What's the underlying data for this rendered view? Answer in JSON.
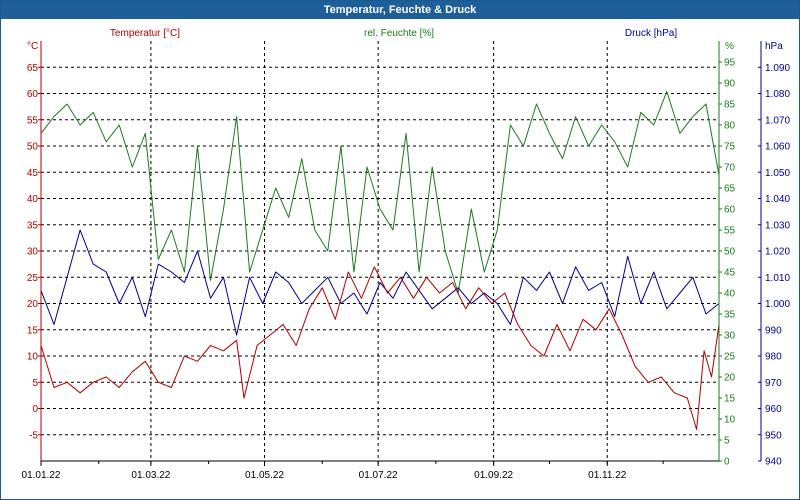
{
  "window": {
    "title": "Temperatur, Feuchte & Druck"
  },
  "colors": {
    "temperature": "#b00000",
    "humidity": "#1e7a1e",
    "pressure": "#00008b",
    "grid": "#000000",
    "title_bar": "#1f5f99"
  },
  "chart_data": {
    "type": "line",
    "title": "Temperatur, Feuchte & Druck",
    "grid": true,
    "x": {
      "type": "date",
      "range": [
        "2022-01-01",
        "2022-12-31"
      ],
      "tick_labels": [
        "01.01.22",
        "01.03.22",
        "01.05.22",
        "01.07.22",
        "01.09.22",
        "01.11.22"
      ],
      "tick_dates": [
        "2022-01-01",
        "2022-03-01",
        "2022-05-01",
        "2022-07-01",
        "2022-09-01",
        "2022-11-01"
      ],
      "minor_ticks": "monthly"
    },
    "axes": {
      "temperature": {
        "label": "Temperatur [°C]",
        "unit": "°C",
        "side": "left",
        "range": [
          -10,
          70
        ],
        "ticks": [
          -5,
          0,
          5,
          10,
          15,
          20,
          25,
          30,
          35,
          40,
          45,
          50,
          55,
          60,
          65
        ]
      },
      "humidity": {
        "label": "rel. Feuchte [%]",
        "unit": "%",
        "side": "right",
        "range": [
          0,
          100
        ],
        "ticks": [
          0,
          5,
          10,
          15,
          20,
          25,
          30,
          35,
          40,
          45,
          50,
          55,
          60,
          65,
          70,
          75,
          80,
          85,
          90,
          95
        ]
      },
      "pressure": {
        "label": "Druck [hPa]",
        "unit": "hPa",
        "side": "far-right",
        "range": [
          940,
          1100
        ],
        "ticks": [
          "940",
          "950",
          "960",
          "970",
          "980",
          "990",
          "1.000",
          "1.010",
          "1.020",
          "1.030",
          "1.040",
          "1.050",
          "1.060",
          "1.070",
          "1.080",
          "1.090"
        ]
      }
    },
    "series": [
      {
        "name": "Temperatur [°C]",
        "axis": "temperature",
        "points": [
          [
            "2022-01-01",
            12
          ],
          [
            "2022-01-08",
            4
          ],
          [
            "2022-01-15",
            5
          ],
          [
            "2022-01-22",
            3
          ],
          [
            "2022-01-29",
            5
          ],
          [
            "2022-02-05",
            6
          ],
          [
            "2022-02-12",
            4
          ],
          [
            "2022-02-19",
            7
          ],
          [
            "2022-02-26",
            9
          ],
          [
            "2022-03-05",
            5
          ],
          [
            "2022-03-12",
            4
          ],
          [
            "2022-03-19",
            10
          ],
          [
            "2022-03-26",
            9
          ],
          [
            "2022-04-02",
            12
          ],
          [
            "2022-04-09",
            11
          ],
          [
            "2022-04-16",
            13
          ],
          [
            "2022-04-20",
            2
          ],
          [
            "2022-04-27",
            12
          ],
          [
            "2022-05-04",
            14
          ],
          [
            "2022-05-11",
            16
          ],
          [
            "2022-05-18",
            12
          ],
          [
            "2022-05-25",
            19
          ],
          [
            "2022-06-01",
            23
          ],
          [
            "2022-06-08",
            17
          ],
          [
            "2022-06-15",
            26
          ],
          [
            "2022-06-22",
            21
          ],
          [
            "2022-06-29",
            27
          ],
          [
            "2022-07-06",
            22
          ],
          [
            "2022-07-13",
            25
          ],
          [
            "2022-07-20",
            21
          ],
          [
            "2022-07-27",
            25
          ],
          [
            "2022-08-03",
            22
          ],
          [
            "2022-08-10",
            24
          ],
          [
            "2022-08-17",
            19
          ],
          [
            "2022-08-24",
            23
          ],
          [
            "2022-08-31",
            20
          ],
          [
            "2022-09-07",
            22
          ],
          [
            "2022-09-14",
            16
          ],
          [
            "2022-09-21",
            12
          ],
          [
            "2022-09-28",
            10
          ],
          [
            "2022-10-05",
            16
          ],
          [
            "2022-10-12",
            11
          ],
          [
            "2022-10-19",
            17
          ],
          [
            "2022-10-26",
            15
          ],
          [
            "2022-11-02",
            19
          ],
          [
            "2022-11-09",
            14
          ],
          [
            "2022-11-16",
            8
          ],
          [
            "2022-11-23",
            5
          ],
          [
            "2022-11-30",
            6
          ],
          [
            "2022-12-07",
            3
          ],
          [
            "2022-12-14",
            2
          ],
          [
            "2022-12-19",
            -4
          ],
          [
            "2022-12-23",
            11
          ],
          [
            "2022-12-27",
            6
          ],
          [
            "2022-12-31",
            16
          ]
        ]
      },
      {
        "name": "rel. Feuchte [%]",
        "axis": "humidity",
        "points": [
          [
            "2022-01-01",
            78
          ],
          [
            "2022-01-08",
            82
          ],
          [
            "2022-01-15",
            85
          ],
          [
            "2022-01-22",
            80
          ],
          [
            "2022-01-29",
            83
          ],
          [
            "2022-02-05",
            76
          ],
          [
            "2022-02-12",
            80
          ],
          [
            "2022-02-19",
            70
          ],
          [
            "2022-02-26",
            78
          ],
          [
            "2022-03-05",
            48
          ],
          [
            "2022-03-12",
            55
          ],
          [
            "2022-03-19",
            45
          ],
          [
            "2022-03-26",
            75
          ],
          [
            "2022-04-02",
            43
          ],
          [
            "2022-04-09",
            60
          ],
          [
            "2022-04-16",
            82
          ],
          [
            "2022-04-23",
            45
          ],
          [
            "2022-04-30",
            55
          ],
          [
            "2022-05-07",
            65
          ],
          [
            "2022-05-14",
            58
          ],
          [
            "2022-05-21",
            72
          ],
          [
            "2022-05-28",
            55
          ],
          [
            "2022-06-04",
            50
          ],
          [
            "2022-06-11",
            75
          ],
          [
            "2022-06-18",
            45
          ],
          [
            "2022-06-25",
            70
          ],
          [
            "2022-07-02",
            60
          ],
          [
            "2022-07-09",
            55
          ],
          [
            "2022-07-16",
            78
          ],
          [
            "2022-07-23",
            45
          ],
          [
            "2022-07-30",
            70
          ],
          [
            "2022-08-06",
            50
          ],
          [
            "2022-08-13",
            40
          ],
          [
            "2022-08-20",
            60
          ],
          [
            "2022-08-27",
            45
          ],
          [
            "2022-09-03",
            55
          ],
          [
            "2022-09-10",
            80
          ],
          [
            "2022-09-17",
            75
          ],
          [
            "2022-09-24",
            85
          ],
          [
            "2022-10-01",
            78
          ],
          [
            "2022-10-08",
            72
          ],
          [
            "2022-10-15",
            82
          ],
          [
            "2022-10-22",
            75
          ],
          [
            "2022-10-29",
            80
          ],
          [
            "2022-11-05",
            76
          ],
          [
            "2022-11-12",
            70
          ],
          [
            "2022-11-19",
            83
          ],
          [
            "2022-11-26",
            80
          ],
          [
            "2022-12-03",
            88
          ],
          [
            "2022-12-10",
            78
          ],
          [
            "2022-12-17",
            82
          ],
          [
            "2022-12-24",
            85
          ],
          [
            "2022-12-31",
            68
          ]
        ]
      },
      {
        "name": "Druck [hPa]",
        "axis": "pressure",
        "points": [
          [
            "2022-01-01",
            1005
          ],
          [
            "2022-01-08",
            992
          ],
          [
            "2022-01-15",
            1010
          ],
          [
            "2022-01-22",
            1028
          ],
          [
            "2022-01-29",
            1015
          ],
          [
            "2022-02-05",
            1012
          ],
          [
            "2022-02-12",
            1000
          ],
          [
            "2022-02-19",
            1010
          ],
          [
            "2022-02-26",
            995
          ],
          [
            "2022-03-05",
            1015
          ],
          [
            "2022-03-12",
            1012
          ],
          [
            "2022-03-19",
            1008
          ],
          [
            "2022-03-26",
            1020
          ],
          [
            "2022-04-02",
            1002
          ],
          [
            "2022-04-09",
            1010
          ],
          [
            "2022-04-16",
            988
          ],
          [
            "2022-04-23",
            1010
          ],
          [
            "2022-04-30",
            1000
          ],
          [
            "2022-05-07",
            1012
          ],
          [
            "2022-05-14",
            1008
          ],
          [
            "2022-05-21",
            1000
          ],
          [
            "2022-05-28",
            1005
          ],
          [
            "2022-06-04",
            1010
          ],
          [
            "2022-06-11",
            1000
          ],
          [
            "2022-06-18",
            1004
          ],
          [
            "2022-06-25",
            996
          ],
          [
            "2022-07-02",
            1008
          ],
          [
            "2022-07-09",
            1002
          ],
          [
            "2022-07-16",
            1012
          ],
          [
            "2022-07-23",
            1005
          ],
          [
            "2022-07-30",
            998
          ],
          [
            "2022-08-06",
            1002
          ],
          [
            "2022-08-13",
            1006
          ],
          [
            "2022-08-20",
            1000
          ],
          [
            "2022-08-27",
            1004
          ],
          [
            "2022-09-03",
            1000
          ],
          [
            "2022-09-10",
            992
          ],
          [
            "2022-09-17",
            1010
          ],
          [
            "2022-09-24",
            1005
          ],
          [
            "2022-10-01",
            1012
          ],
          [
            "2022-10-08",
            1000
          ],
          [
            "2022-10-15",
            1014
          ],
          [
            "2022-10-22",
            1005
          ],
          [
            "2022-10-29",
            1008
          ],
          [
            "2022-11-05",
            995
          ],
          [
            "2022-11-12",
            1018
          ],
          [
            "2022-11-19",
            1000
          ],
          [
            "2022-11-26",
            1012
          ],
          [
            "2022-12-03",
            998
          ],
          [
            "2022-12-10",
            1004
          ],
          [
            "2022-12-17",
            1010
          ],
          [
            "2022-12-24",
            996
          ],
          [
            "2022-12-31",
            1000
          ]
        ]
      }
    ]
  }
}
